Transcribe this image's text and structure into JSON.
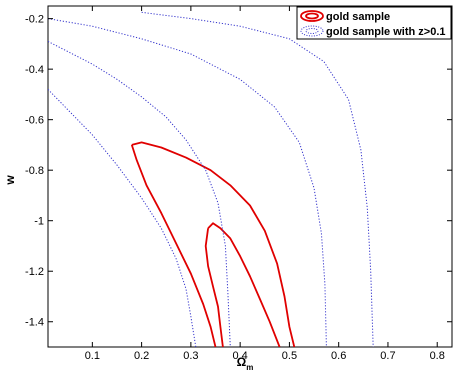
{
  "chart_data": {
    "type": "line",
    "title": "",
    "xlabel": "Ω",
    "xlabel_sub": "m",
    "ylabel": "w",
    "xlim": [
      0.01,
      0.83
    ],
    "ylim": [
      -1.5,
      -0.15
    ],
    "xticks": [
      0.1,
      0.2,
      0.3,
      0.4,
      0.5,
      0.6,
      0.7,
      0.8
    ],
    "yticks": [
      -0.2,
      -0.4,
      -0.6,
      -0.8,
      -1.0,
      -1.2,
      -1.4
    ],
    "xtick_labels": [
      "0.1",
      "0.2",
      "0.3",
      "0.4",
      "0.5",
      "0.6",
      "0.7",
      "0.8"
    ],
    "ytick_labels": [
      "-0.2",
      "-0.4",
      "-0.6",
      "-0.8",
      "-1",
      "-1.2",
      "-1.4"
    ],
    "grid": false,
    "legend_position": "top-right",
    "series": [
      {
        "name": "gold sample",
        "color": "#e00000",
        "style": "solid",
        "contours": [
          [
            [
              0.18,
              -0.7
            ],
            [
              0.2,
              -0.69
            ],
            [
              0.24,
              -0.71
            ],
            [
              0.29,
              -0.75
            ],
            [
              0.34,
              -0.8
            ],
            [
              0.38,
              -0.86
            ],
            [
              0.42,
              -0.94
            ],
            [
              0.45,
              -1.04
            ],
            [
              0.475,
              -1.17
            ],
            [
              0.49,
              -1.3
            ],
            [
              0.5,
              -1.42
            ],
            [
              0.51,
              -1.5
            ]
          ],
          [
            [
              0.18,
              -0.7
            ],
            [
              0.19,
              -0.76
            ],
            [
              0.21,
              -0.86
            ],
            [
              0.24,
              -0.97
            ],
            [
              0.27,
              -1.09
            ],
            [
              0.3,
              -1.21
            ],
            [
              0.325,
              -1.33
            ],
            [
              0.34,
              -1.42
            ],
            [
              0.35,
              -1.5
            ]
          ],
          [
            [
              0.335,
              -1.03
            ],
            [
              0.345,
              -1.01
            ],
            [
              0.36,
              -1.03
            ],
            [
              0.38,
              -1.07
            ],
            [
              0.4,
              -1.14
            ],
            [
              0.42,
              -1.22
            ],
            [
              0.44,
              -1.31
            ],
            [
              0.46,
              -1.4
            ],
            [
              0.48,
              -1.5
            ]
          ],
          [
            [
              0.335,
              -1.03
            ],
            [
              0.33,
              -1.1
            ],
            [
              0.335,
              -1.18
            ],
            [
              0.345,
              -1.26
            ],
            [
              0.355,
              -1.34
            ],
            [
              0.36,
              -1.42
            ],
            [
              0.365,
              -1.5
            ]
          ]
        ]
      },
      {
        "name": "gold sample with z>0.1",
        "color": "#3333cc",
        "style": "dotted",
        "contours": [
          [
            [
              0.01,
              -0.48
            ],
            [
              0.05,
              -0.56
            ],
            [
              0.1,
              -0.66
            ],
            [
              0.15,
              -0.78
            ],
            [
              0.2,
              -0.91
            ],
            [
              0.24,
              -1.03
            ],
            [
              0.27,
              -1.15
            ],
            [
              0.29,
              -1.27
            ],
            [
              0.3,
              -1.38
            ],
            [
              0.31,
              -1.5
            ]
          ],
          [
            [
              0.01,
              -0.29
            ],
            [
              0.05,
              -0.33
            ],
            [
              0.1,
              -0.38
            ],
            [
              0.15,
              -0.44
            ],
            [
              0.2,
              -0.51
            ],
            [
              0.25,
              -0.59
            ],
            [
              0.29,
              -0.68
            ],
            [
              0.33,
              -0.8
            ],
            [
              0.355,
              -0.93
            ],
            [
              0.37,
              -1.1
            ],
            [
              0.375,
              -1.28
            ],
            [
              0.38,
              -1.5
            ]
          ],
          [
            [
              0.01,
              -0.2
            ],
            [
              0.1,
              -0.23
            ],
            [
              0.2,
              -0.28
            ],
            [
              0.3,
              -0.34
            ],
            [
              0.4,
              -0.44
            ],
            [
              0.47,
              -0.55
            ],
            [
              0.52,
              -0.69
            ],
            [
              0.55,
              -0.87
            ],
            [
              0.565,
              -1.05
            ],
            [
              0.572,
              -1.25
            ],
            [
              0.575,
              -1.5
            ]
          ],
          [
            [
              0.2,
              -0.175
            ],
            [
              0.3,
              -0.2
            ],
            [
              0.4,
              -0.23
            ],
            [
              0.5,
              -0.28
            ],
            [
              0.57,
              -0.37
            ],
            [
              0.62,
              -0.52
            ],
            [
              0.645,
              -0.72
            ],
            [
              0.658,
              -0.95
            ],
            [
              0.665,
              -1.2
            ],
            [
              0.67,
              -1.5
            ]
          ]
        ]
      }
    ]
  }
}
